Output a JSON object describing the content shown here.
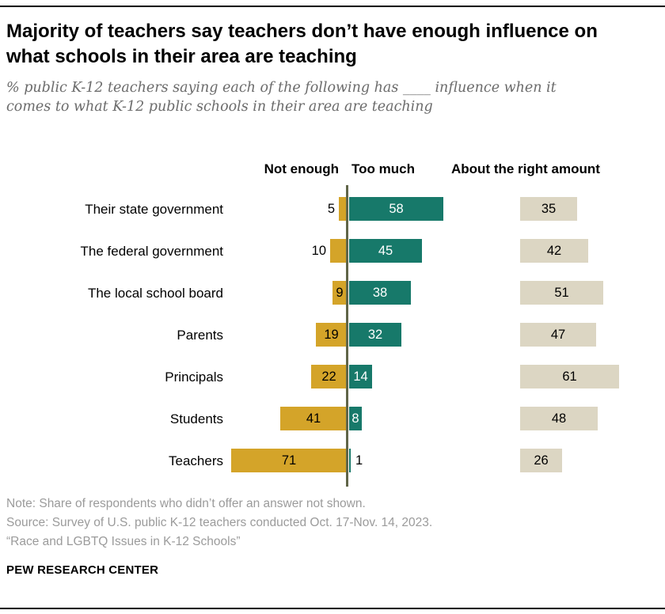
{
  "chart_data": {
    "type": "bar",
    "orientation": "horizontal",
    "variant": "diverging",
    "title": "Majority of teachers say teachers don’t have enough influence on what schools in their area are teaching",
    "subtitle": "% public K-12 teachers saying each of the following has ____ influence when it comes to what K-12 public schools in their area are teaching",
    "column_headers": [
      "Not enough",
      "Too much",
      "About the right amount"
    ],
    "categories": [
      "Their state government",
      "The federal government",
      "The local school board",
      "Parents",
      "Principals",
      "Students",
      "Teachers"
    ],
    "series": [
      {
        "name": "Not enough",
        "color": "#d4a429",
        "values": [
          5,
          10,
          9,
          19,
          22,
          41,
          71
        ]
      },
      {
        "name": "Too much",
        "color": "#17796a",
        "values": [
          58,
          45,
          38,
          32,
          14,
          8,
          1
        ]
      },
      {
        "name": "About the right amount",
        "color": "#dcd6c3",
        "values": [
          35,
          42,
          51,
          47,
          61,
          48,
          26
        ]
      }
    ],
    "axis": {
      "max": 100,
      "gridlines": false,
      "value_labels_on_bars": true
    }
  },
  "colors": {
    "not_enough": "#d4a429",
    "too_much": "#17796a",
    "about_right": "#dcd6c3",
    "axis_line": "#606548",
    "note_gray": "#9b9b9b",
    "subtitle_gray": "#6b6b6b"
  },
  "footer": {
    "note": "Note: Share of respondents who didn’t offer an answer not shown.",
    "source": "Source: Survey of U.S. public K-12 teachers conducted Oct. 17-Nov. 14, 2023.",
    "report": "“Race and LGBTQ Issues in K-12 Schools”",
    "brand": "PEW RESEARCH CENTER"
  }
}
